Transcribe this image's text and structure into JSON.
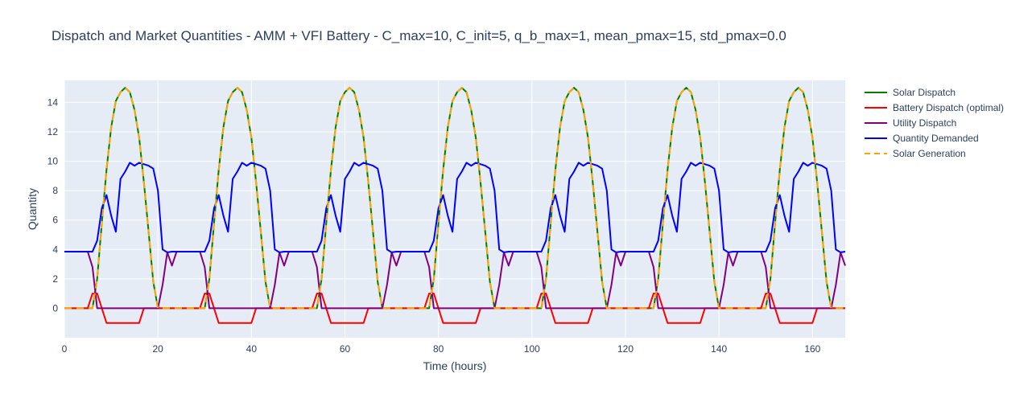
{
  "chart_data": {
    "type": "line",
    "title": "Dispatch and Market Quantities  - AMM + VFI Battery - C_max=10, C_init=5, q_b_max=1, mean_pmax=15, std_pmax=0.0",
    "xlabel": "Time (hours)",
    "ylabel": "Quantity",
    "xlim": [
      0,
      167
    ],
    "ylim": [
      -2,
      15.5
    ],
    "xticks": [
      0,
      20,
      40,
      60,
      80,
      100,
      120,
      140,
      160
    ],
    "yticks": [
      0,
      2,
      4,
      6,
      8,
      10,
      12,
      14
    ],
    "grid": true,
    "legend_position": "top-right outside plot",
    "plot_background": "#e5ecf6",
    "series": [
      {
        "name": "Solar Dispatch",
        "color": "#008000",
        "dash": "solid",
        "daily_profile": [
          0,
          0,
          0,
          0,
          0,
          0,
          0,
          2.0,
          5.8,
          9.4,
          12.3,
          14.1,
          14.7,
          15.0,
          14.7,
          13.5,
          11.6,
          8.6,
          5.2,
          1.8,
          0,
          0,
          0,
          0
        ]
      },
      {
        "name": "Battery Dispatch (optimal)",
        "color": "#ff0000",
        "dash": "solid",
        "daily_profile": [
          0,
          0,
          0,
          0,
          0,
          0,
          1,
          1,
          0,
          -1,
          -1,
          -1,
          -1,
          -1,
          -1,
          -1,
          -1,
          0,
          0,
          0,
          0,
          0,
          0,
          0
        ]
      },
      {
        "name": "Utility Dispatch",
        "color": "#800080",
        "dash": "solid",
        "daily_profile": [
          3.85,
          3.85,
          3.85,
          3.85,
          3.85,
          3.85,
          2.8,
          0,
          0,
          0,
          0,
          0,
          0,
          0,
          0,
          0,
          0,
          0,
          0,
          0,
          0,
          1.6,
          3.8,
          2.9
        ]
      },
      {
        "name": "Quantity Demanded",
        "color": "#0000ff",
        "dash": "solid",
        "daily_profile": [
          3.85,
          3.85,
          3.85,
          3.85,
          3.85,
          3.85,
          3.85,
          4.6,
          6.8,
          7.7,
          6.3,
          5.2,
          8.8,
          9.3,
          9.9,
          9.7,
          9.9,
          9.8,
          9.7,
          9.5,
          8.0,
          4.0,
          3.8,
          3.85
        ]
      },
      {
        "name": "Solar Generation",
        "color": "#ffa500",
        "dash": "dash",
        "daily_profile": [
          0,
          0,
          0,
          0,
          0,
          0,
          0,
          2.0,
          5.8,
          9.4,
          12.3,
          14.1,
          14.7,
          15.0,
          14.7,
          13.5,
          11.6,
          8.6,
          5.2,
          1.8,
          0,
          0,
          0,
          0
        ]
      }
    ],
    "hours": 168
  }
}
